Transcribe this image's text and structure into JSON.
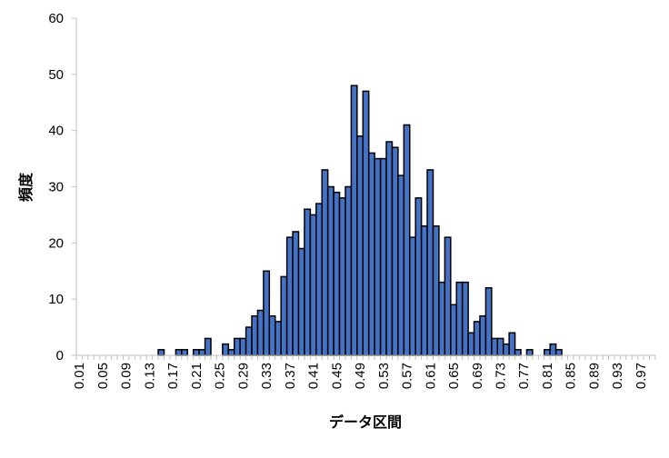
{
  "chart_data": {
    "type": "bar",
    "xlabel": "データ区間",
    "ylabel": "頻度",
    "ylim": [
      0,
      60
    ],
    "yticks": [
      0,
      10,
      20,
      30,
      40,
      50,
      60
    ],
    "grid": false,
    "legend": "none",
    "bar_color": "#4472C4",
    "bar_edge_color": "#000000",
    "categories": [
      "0.01",
      "0.02",
      "0.03",
      "0.04",
      "0.05",
      "0.06",
      "0.07",
      "0.08",
      "0.09",
      "0.10",
      "0.11",
      "0.12",
      "0.13",
      "0.14",
      "0.15",
      "0.16",
      "0.17",
      "0.18",
      "0.19",
      "0.20",
      "0.21",
      "0.22",
      "0.23",
      "0.24",
      "0.25",
      "0.26",
      "0.27",
      "0.28",
      "0.29",
      "0.30",
      "0.31",
      "0.32",
      "0.33",
      "0.34",
      "0.35",
      "0.36",
      "0.37",
      "0.38",
      "0.39",
      "0.40",
      "0.41",
      "0.42",
      "0.43",
      "0.44",
      "0.45",
      "0.46",
      "0.47",
      "0.48",
      "0.49",
      "0.50",
      "0.51",
      "0.52",
      "0.53",
      "0.54",
      "0.55",
      "0.56",
      "0.57",
      "0.58",
      "0.59",
      "0.60",
      "0.61",
      "0.62",
      "0.63",
      "0.64",
      "0.65",
      "0.66",
      "0.67",
      "0.68",
      "0.69",
      "0.70",
      "0.71",
      "0.72",
      "0.73",
      "0.74",
      "0.75",
      "0.76",
      "0.77",
      "0.78",
      "0.79",
      "0.80",
      "0.81",
      "0.82",
      "0.83",
      "0.84",
      "0.85",
      "0.86",
      "0.87",
      "0.88",
      "0.89",
      "0.90",
      "0.91",
      "0.92",
      "0.93",
      "0.94",
      "0.95",
      "0.96",
      "0.97",
      "0.98",
      "0.99"
    ],
    "tick_labels": [
      "0.01",
      "0.05",
      "0.09",
      "0.13",
      "0.17",
      "0.21",
      "0.25",
      "0.29",
      "0.33",
      "0.37",
      "0.41",
      "0.45",
      "0.49",
      "0.53",
      "0.57",
      "0.61",
      "0.65",
      "0.69",
      "0.73",
      "0.77",
      "0.81",
      "0.85",
      "0.89",
      "0.93",
      "0.97"
    ],
    "values": [
      0,
      0,
      0,
      0,
      0,
      0,
      0,
      0,
      0,
      0,
      0,
      0,
      0,
      0,
      1,
      0,
      0,
      1,
      1,
      0,
      1,
      1,
      3,
      0,
      0,
      2,
      1,
      3,
      3,
      5,
      7,
      8,
      15,
      7,
      6,
      14,
      21,
      22,
      19,
      26,
      25,
      27,
      33,
      30,
      29,
      28,
      30,
      48,
      39,
      47,
      36,
      35,
      35,
      38,
      37,
      32,
      41,
      21,
      28,
      23,
      33,
      23,
      13,
      21,
      9,
      13,
      13,
      4,
      6,
      7,
      12,
      3,
      3,
      2,
      4,
      1,
      0,
      1,
      0,
      0,
      1,
      2,
      1,
      0,
      0,
      0,
      0,
      0,
      0,
      0,
      0,
      0,
      0,
      0,
      0,
      0,
      0,
      0,
      0
    ]
  }
}
